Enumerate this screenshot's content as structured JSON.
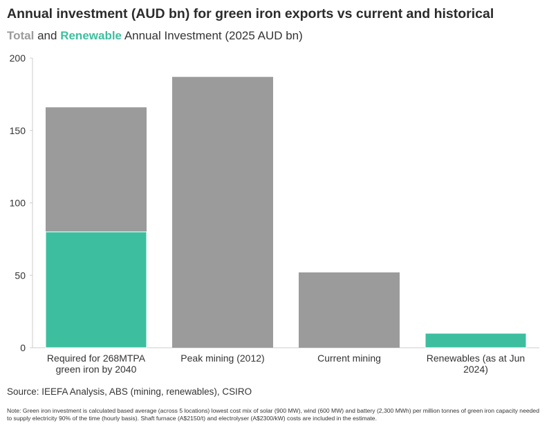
{
  "title": "Annual investment (AUD bn) for green iron exports vs current and historical",
  "subtitle": {
    "total": "Total",
    "and": "and",
    "renewable": "Renewable",
    "rest": "Annual Investment (2025 AUD bn)"
  },
  "source": "Source: IEEFA Analysis, ABS (mining, renewables), CSIRO",
  "note": "Note: Green iron investment is calculated based average (across 5 locations) lowest cost mix of solar (900 MW), wind (600 MW) and battery (2,300 MWh) per million tonnes of green iron capacity needed to supply electricity 90% of the time (hourly basis). Shaft furnace (A$2150/t) and electrolyser (A$2300/kW) costs are included in the estimate.",
  "colors": {
    "total": "#9b9b9b",
    "renewable": "#3dbf9f",
    "axis": "#cccccc",
    "text": "#333333"
  },
  "chart_data": {
    "type": "bar",
    "stacked": false,
    "categories": [
      [
        "Required for 268MTPA",
        "green iron by 2040"
      ],
      [
        "Peak mining (2012)"
      ],
      [
        "Current mining"
      ],
      [
        "Renewables (as at Jun",
        "2024)"
      ]
    ],
    "series": [
      {
        "name": "Total",
        "color": "#9b9b9b",
        "values": [
          166,
          187,
          52,
          null
        ]
      },
      {
        "name": "Renewable",
        "color": "#3dbf9f",
        "values": [
          80,
          null,
          null,
          10
        ]
      }
    ],
    "ylim": [
      0,
      200
    ],
    "yticks": [
      0,
      50,
      100,
      150,
      200
    ],
    "grid": false
  }
}
